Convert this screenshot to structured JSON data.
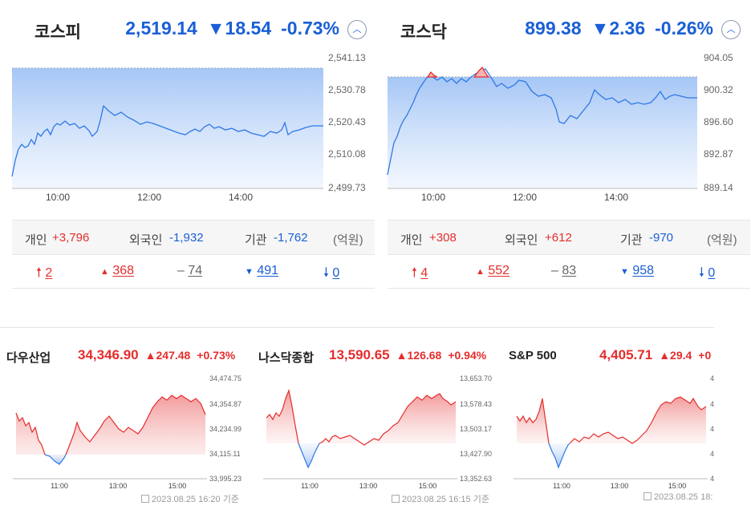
{
  "kospi": {
    "name": "코스피",
    "value": "2,519.14",
    "change": "▼18.54",
    "rate": "-0.73%",
    "y_ticks": [
      "2,541.13",
      "2,530.78",
      "2,520.43",
      "2,510.08",
      "2,499.73"
    ],
    "x_ticks": [
      "10:00",
      "12:00",
      "14:00"
    ],
    "investors": {
      "individual_label": "개인",
      "individual": "+3,796",
      "foreign_label": "외국인",
      "foreign": "-1,932",
      "inst_label": "기관",
      "inst": "-1,762",
      "unit": "(억원)"
    },
    "breadth": {
      "upper_limit": "2",
      "rise": "368",
      "flat": "74",
      "fall": "491",
      "lower_limit": "0"
    }
  },
  "kosdaq": {
    "name": "코스닥",
    "value": "899.38",
    "change": "▼2.36",
    "rate": "-0.26%",
    "y_ticks": [
      "904.05",
      "900.32",
      "896.60",
      "892.87",
      "889.14"
    ],
    "x_ticks": [
      "10:00",
      "12:00",
      "14:00"
    ],
    "investors": {
      "individual_label": "개인",
      "individual": "+308",
      "foreign_label": "외국인",
      "foreign": "+612",
      "inst_label": "기관",
      "inst": "-970",
      "unit": "(억원)"
    },
    "breadth": {
      "upper_limit": "4",
      "rise": "552",
      "flat": "83",
      "fall": "958",
      "lower_limit": "0"
    }
  },
  "dow": {
    "name": "다우산업",
    "value": "34,346.90",
    "change": "▲247.48",
    "rate": "+0.73%",
    "y_ticks": [
      "34,474.75",
      "34,354.87",
      "34,234.99",
      "34,115.11",
      "33,995.23"
    ],
    "x_ticks": [
      "11:00",
      "13:00",
      "15:00"
    ],
    "stamp": "2023.08.25 16:20 기준"
  },
  "nasdaq": {
    "name": "나스닥종합",
    "value": "13,590.65",
    "change": "▲126.68",
    "rate": "+0.94%",
    "y_ticks": [
      "13,653.70",
      "13,578.43",
      "13,503.17",
      "13,427.90",
      "13,352.63"
    ],
    "x_ticks": [
      "11:00",
      "13:00",
      "15:00"
    ],
    "stamp": "2023.08.25 16:15 기준"
  },
  "sp500": {
    "name": "S&P 500",
    "value": "4,405.71",
    "change": "▲29.4",
    "rate": "+0",
    "y_ticks": [
      "4",
      "4",
      "4",
      "4",
      "4"
    ],
    "x_ticks": [
      "11:00",
      "13:00",
      "15:00"
    ],
    "stamp": "2023.08.25 18:"
  },
  "colors": {
    "up": "#e52d2d",
    "down": "#1a5fd6",
    "line_blue": "#2f78e6",
    "fill_red": "#f6b3b3"
  },
  "icons": {
    "collapse": "chevron-up-icon",
    "upper_limit": "arrow-up-icon",
    "rise": "triangle-up-icon",
    "flat": "dash-icon",
    "fall": "triangle-down-icon",
    "lower_limit": "arrow-down-icon"
  }
}
